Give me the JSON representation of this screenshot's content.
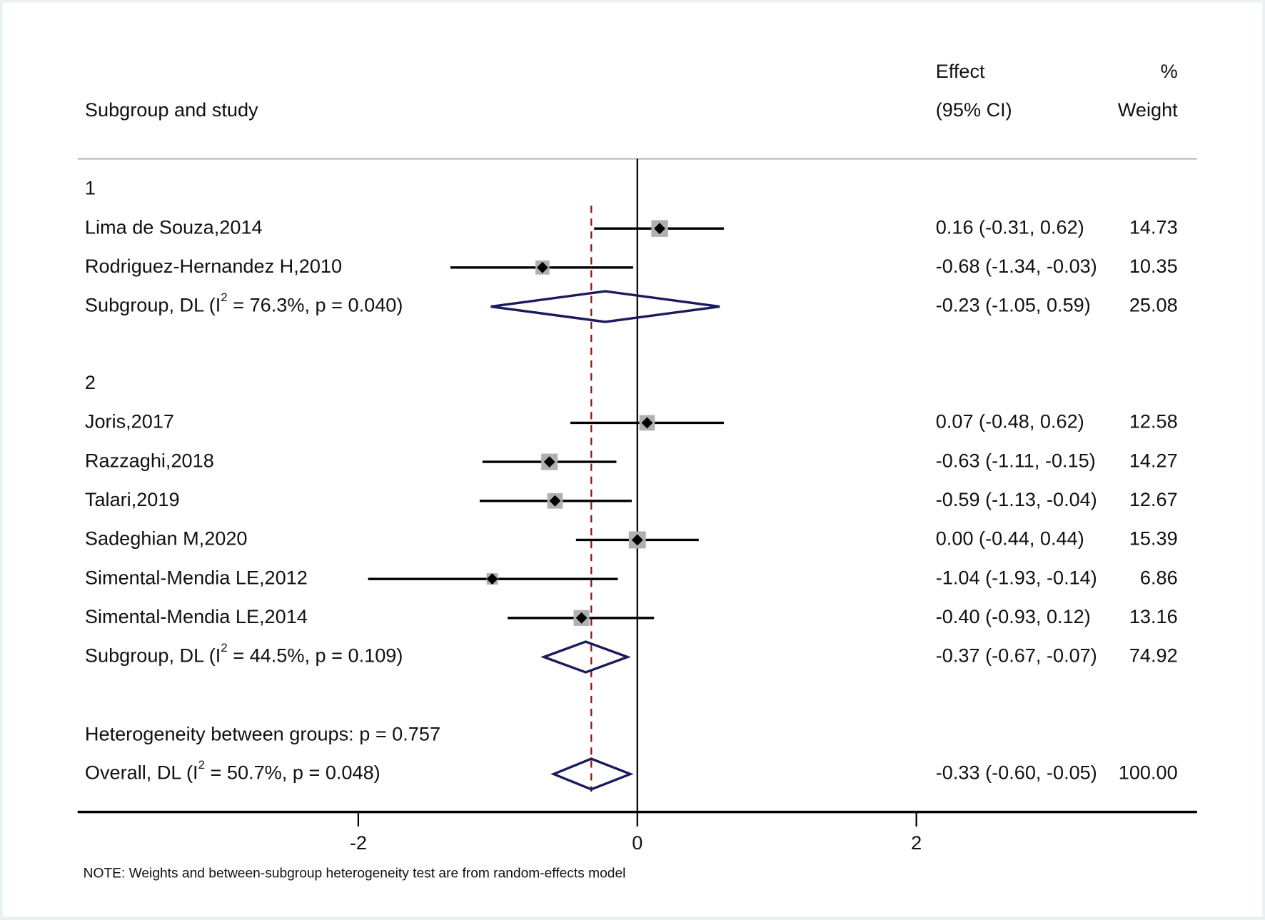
{
  "chart_data": {
    "type": "forest",
    "header": {
      "col1": "Subgroup and study",
      "effect_line1": "Effect",
      "effect_line2": "(95% CI)",
      "weight_line1": "%",
      "weight_line2": "Weight"
    },
    "xaxis": {
      "ticks": [
        -2,
        0,
        2
      ],
      "tick_labels": [
        "-2",
        "0",
        "2"
      ],
      "range": [
        -4.01,
        4.01
      ]
    },
    "overall_line": -0.33,
    "groups": [
      {
        "label": "1",
        "studies": [
          {
            "name": "Lima de Souza,2014",
            "est": 0.16,
            "lo": -0.31,
            "hi": 0.62,
            "ci_text": "0.16 (-0.31, 0.62)",
            "weight": "14.73"
          },
          {
            "name": "Rodriguez-Hernandez H,2010",
            "est": -0.68,
            "lo": -1.34,
            "hi": -0.03,
            "ci_text": "-0.68 (-1.34, -0.03)",
            "weight": "10.35"
          }
        ],
        "subtotal": {
          "prefix": "Subgroup, DL (I",
          "sup": "2",
          "suffix": " = 76.3%, p = 0.040)",
          "est": -0.23,
          "lo": -1.05,
          "hi": 0.59,
          "ci_text": "-0.23 (-1.05, 0.59)",
          "weight": "25.08"
        }
      },
      {
        "label": "2",
        "studies": [
          {
            "name": "Joris,2017",
            "est": 0.07,
            "lo": -0.48,
            "hi": 0.62,
            "ci_text": "0.07 (-0.48, 0.62)",
            "weight": "12.58"
          },
          {
            "name": "Razzaghi,2018",
            "est": -0.63,
            "lo": -1.11,
            "hi": -0.15,
            "ci_text": "-0.63 (-1.11, -0.15)",
            "weight": "14.27"
          },
          {
            "name": "Talari,2019",
            "est": -0.59,
            "lo": -1.13,
            "hi": -0.04,
            "ci_text": "-0.59 (-1.13, -0.04)",
            "weight": "12.67"
          },
          {
            "name": "Sadeghian M,2020",
            "est": 0.0,
            "lo": -0.44,
            "hi": 0.44,
            "ci_text": "0.00 (-0.44, 0.44)",
            "weight": "15.39"
          },
          {
            "name": "Simental-Mendia LE,2012",
            "est": -1.04,
            "lo": -1.93,
            "hi": -0.14,
            "ci_text": "-1.04 (-1.93, -0.14)",
            "weight": "6.86"
          },
          {
            "name": "Simental-Mendia LE,2014",
            "est": -0.4,
            "lo": -0.93,
            "hi": 0.12,
            "ci_text": "-0.40 (-0.93, 0.12)",
            "weight": "13.16"
          }
        ],
        "subtotal": {
          "prefix": "Subgroup, DL (I",
          "sup": "2",
          "suffix": " = 44.5%, p = 0.109)",
          "est": -0.37,
          "lo": -0.67,
          "hi": -0.07,
          "ci_text": "-0.37 (-0.67, -0.07)",
          "weight": "74.92"
        }
      }
    ],
    "heterogeneity": "Heterogeneity between groups: p = 0.757",
    "overall": {
      "prefix": "Overall, DL (I",
      "sup": "2",
      "suffix": " = 50.7%, p = 0.048)",
      "est": -0.33,
      "lo": -0.6,
      "hi": -0.05,
      "ci_text": "-0.33 (-0.60, -0.05)",
      "weight": "100.00"
    },
    "note": "NOTE: Weights and between-subgroup heterogeneity test are from random-effects model",
    "colors": {
      "diamond": "#1a1a5e",
      "overall_line": "#8b1a1a",
      "box": "#b0b0b0",
      "point": "#000000"
    }
  }
}
